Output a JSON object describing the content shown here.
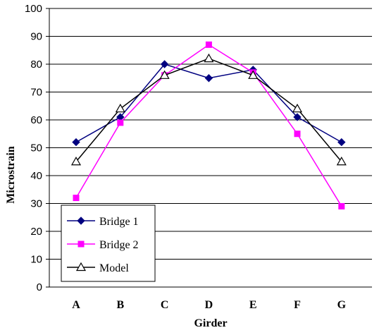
{
  "chart_data": {
    "type": "line",
    "title": "",
    "xlabel": "Girder",
    "ylabel": "Microstrain",
    "categories": [
      "A",
      "B",
      "C",
      "D",
      "E",
      "F",
      "G"
    ],
    "ylim": [
      0,
      100
    ],
    "yticks": [
      0,
      10,
      20,
      30,
      40,
      50,
      60,
      70,
      80,
      90,
      100
    ],
    "grid": true,
    "legend_position": "bottom-left",
    "series": [
      {
        "name": "Bridge 1",
        "values": [
          52,
          61,
          80,
          75,
          78,
          61,
          52
        ],
        "color": "#000080",
        "marker": "diamond"
      },
      {
        "name": "Bridge 2",
        "values": [
          32,
          59,
          76,
          87,
          77,
          55,
          29
        ],
        "color": "#ff00ff",
        "marker": "square"
      },
      {
        "name": "Model",
        "values": [
          45,
          64,
          76,
          82,
          76,
          64,
          45
        ],
        "color": "#000000",
        "marker": "triangle-open"
      }
    ]
  }
}
